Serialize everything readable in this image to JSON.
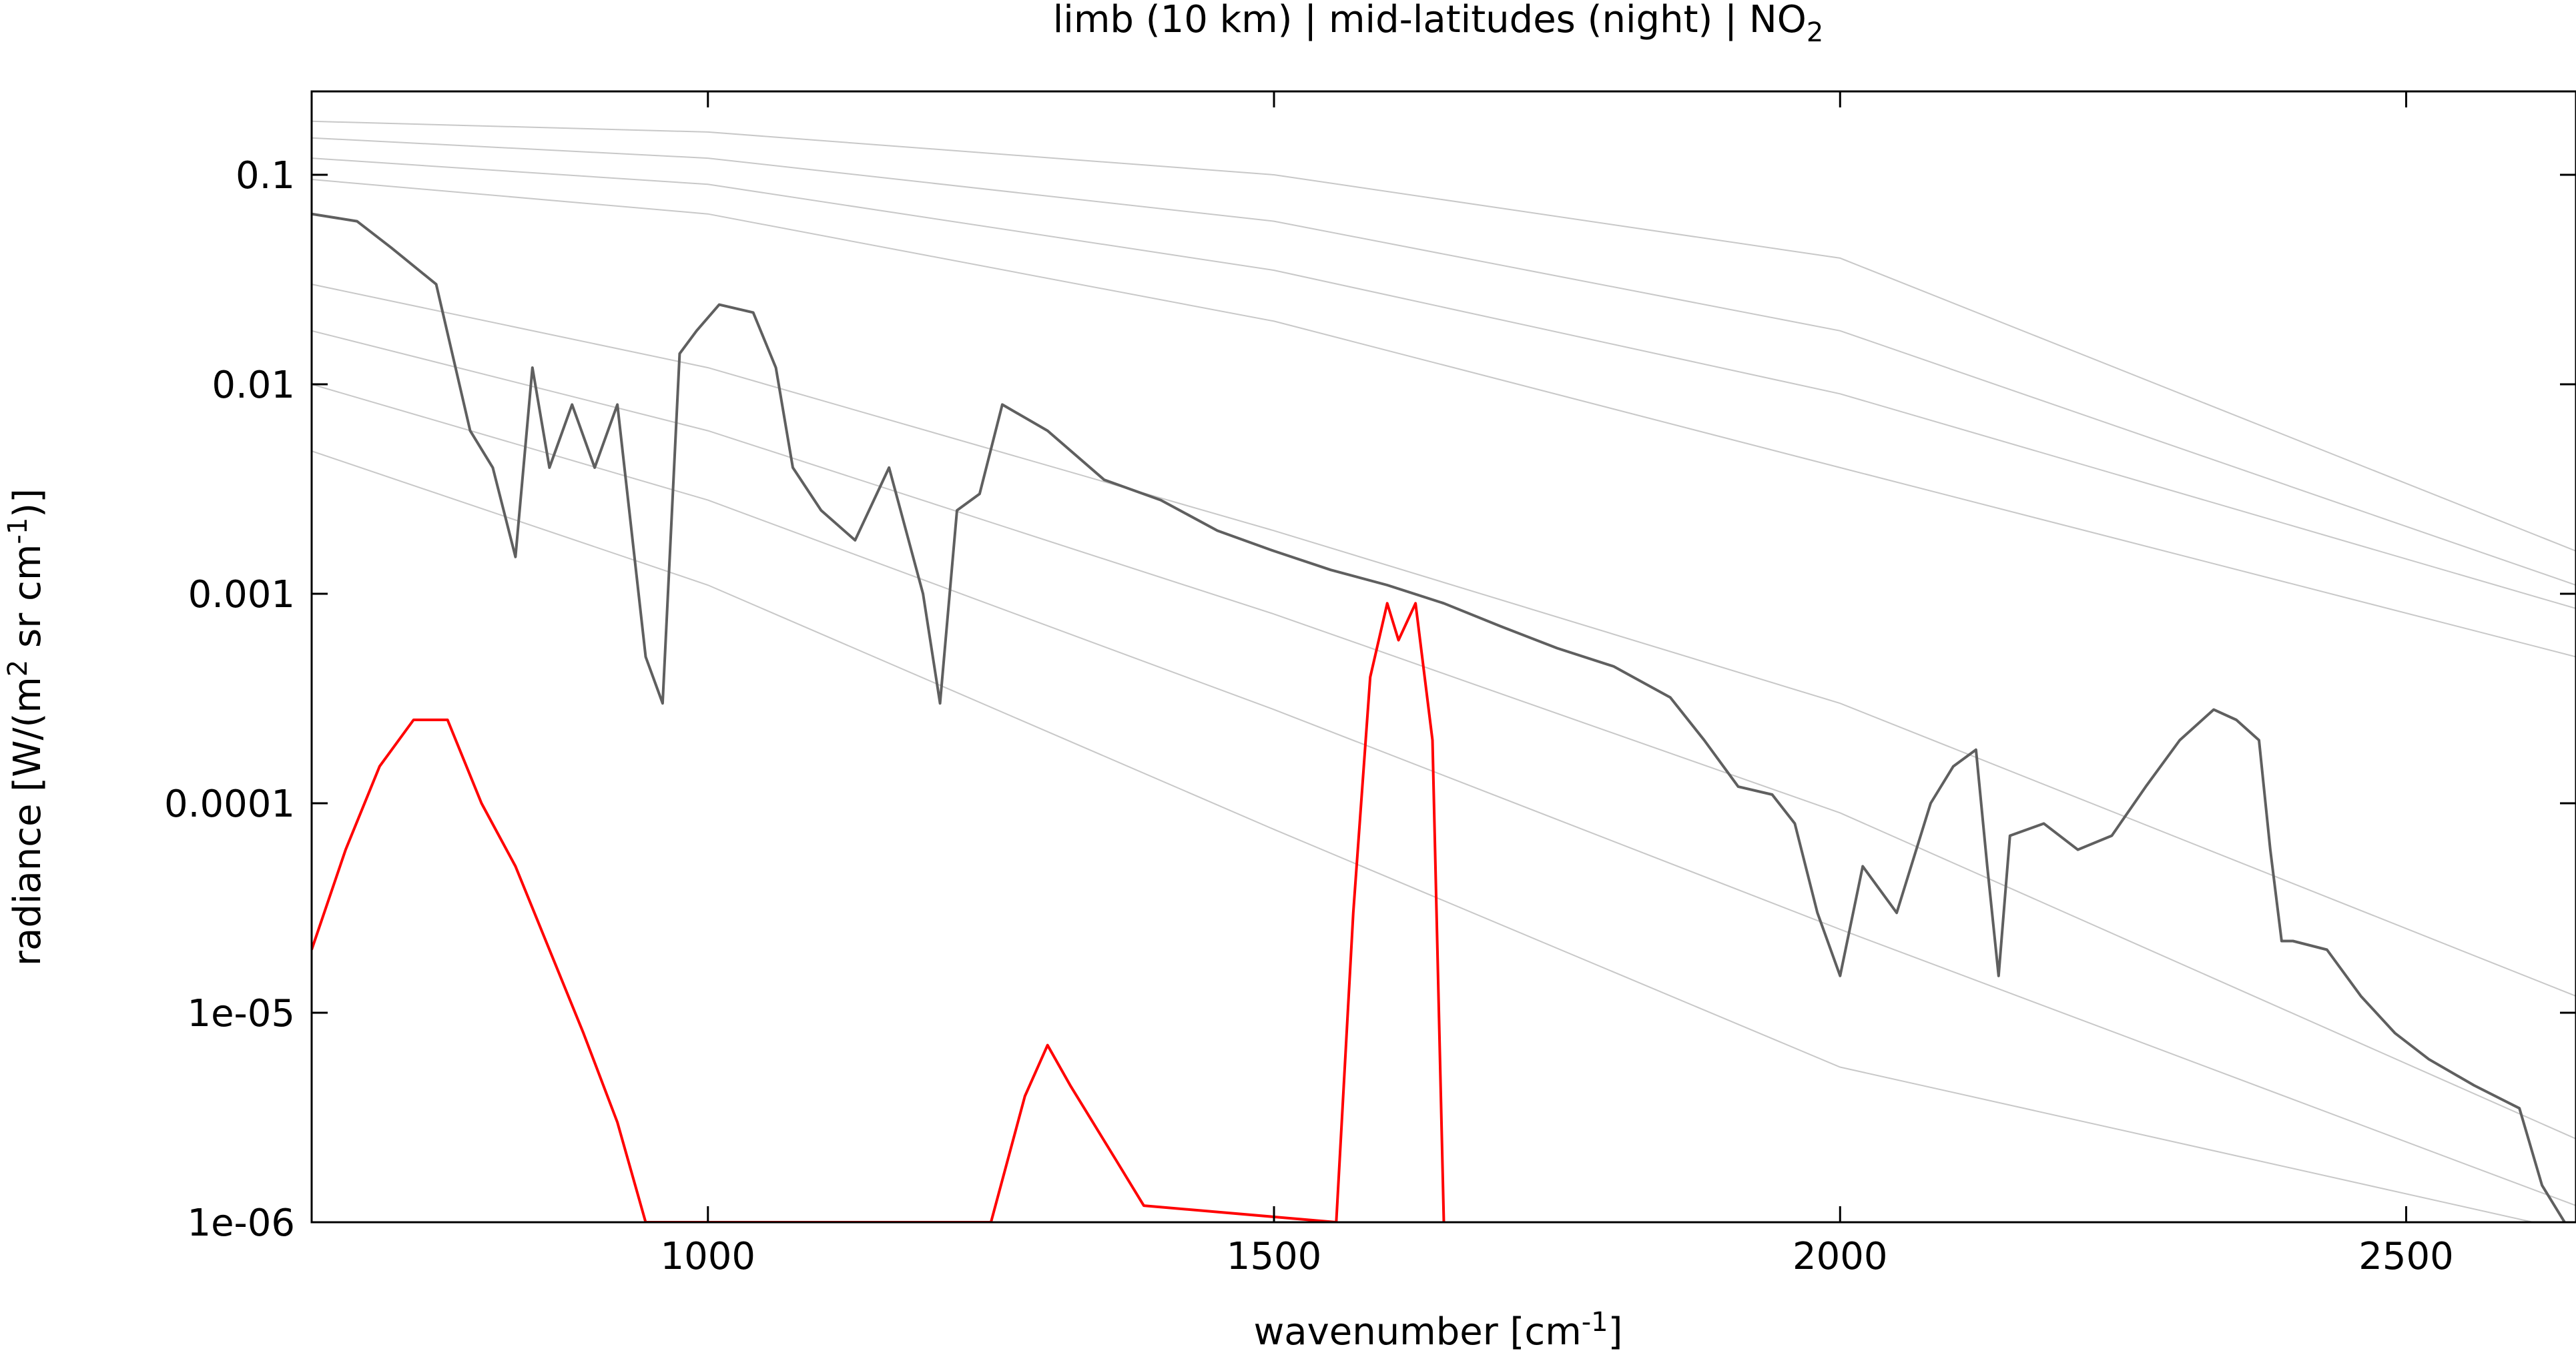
{
  "chart_data": {
    "type": "line",
    "title": "limb (10 km) | mid-latitudes (night) | NO2",
    "title_parts": {
      "main": "limb (10 km) | mid-latitudes (night) | NO",
      "subscript": "2"
    },
    "xlabel": "wavenumber [cm-1]",
    "xlabel_parts": {
      "main": "wavenumber [cm",
      "superscript": "-1",
      "end": "]"
    },
    "ylabel": "radiance [W/(m2 sr cm-1)]",
    "ylabel_parts": {
      "a": "radiance [W/(m",
      "sup1": "2",
      "b": " sr cm",
      "sup2": "-1",
      "c": ")]"
    },
    "xlim": [
      650,
      2650
    ],
    "ylim": [
      1e-06,
      0.25
    ],
    "yscale": "log",
    "grid": false,
    "xticks": [
      {
        "value": 1000,
        "label": "1000"
      },
      {
        "value": 1500,
        "label": "1500"
      },
      {
        "value": 2000,
        "label": "2000"
      },
      {
        "value": 2500,
        "label": "2500"
      }
    ],
    "yticks": [
      {
        "value": 0.1,
        "label": "0.1"
      },
      {
        "value": 0.01,
        "label": "0.01"
      },
      {
        "value": 0.001,
        "label": "0.001"
      },
      {
        "value": 0.0001,
        "label": "0.0001"
      },
      {
        "value": 1e-05,
        "label": "1e-05"
      },
      {
        "value": 1e-06,
        "label": "1e-06"
      }
    ],
    "reference_curves": {
      "description_units": "radiance at wavenumber",
      "x": [
        650,
        1000,
        1500,
        2000,
        2650
      ],
      "curves": [
        [
          0.18,
          0.16,
          0.1,
          0.04,
          0.0016
        ],
        [
          0.15,
          0.12,
          0.06,
          0.018,
          0.0011
        ],
        [
          0.12,
          0.09,
          0.035,
          0.009,
          0.00085
        ],
        [
          0.095,
          0.065,
          0.02,
          0.004,
          0.0005
        ],
        [
          0.03,
          0.012,
          0.002,
          0.0003,
          1.2e-05
        ],
        [
          0.018,
          0.006,
          0.0008,
          9e-05,
          2.5e-06
        ],
        [
          0.01,
          0.0028,
          0.00028,
          2.5e-05,
          1.2e-06
        ],
        [
          0.0048,
          0.0011,
          7.5e-05,
          5.5e-06,
          9e-07
        ]
      ]
    },
    "series": [
      {
        "color": "#5f5f5f",
        "x": [
          650,
          690,
          720,
          760,
          790,
          810,
          830,
          845,
          860,
          880,
          900,
          920,
          945,
          960,
          975,
          990,
          1010,
          1040,
          1060,
          1075,
          1100,
          1130,
          1160,
          1190,
          1205,
          1220,
          1240,
          1260,
          1300,
          1350,
          1400,
          1450,
          1500,
          1550,
          1600,
          1650,
          1700,
          1750,
          1800,
          1850,
          1880,
          1910,
          1940,
          1960,
          1980,
          2000,
          2020,
          2050,
          2080,
          2100,
          2120,
          2130,
          2140,
          2150,
          2180,
          2210,
          2240,
          2270,
          2300,
          2330,
          2350,
          2370,
          2380,
          2390,
          2400,
          2430,
          2460,
          2490,
          2520,
          2560,
          2600,
          2620,
          2640
        ],
        "values": [
          0.065,
          0.06,
          0.045,
          0.03,
          0.006,
          0.004,
          0.0015,
          0.012,
          0.004,
          0.008,
          0.004,
          0.008,
          0.0005,
          0.0003,
          0.014,
          0.018,
          0.024,
          0.022,
          0.012,
          0.004,
          0.0025,
          0.0018,
          0.004,
          0.001,
          0.0003,
          0.0025,
          0.003,
          0.008,
          0.006,
          0.0035,
          0.0028,
          0.002,
          0.0016,
          0.0013,
          0.0011,
          0.0009,
          0.0007,
          0.00055,
          0.00045,
          0.00032,
          0.0002,
          0.00012,
          0.00011,
          8e-05,
          3e-05,
          1.5e-05,
          5e-05,
          3e-05,
          0.0001,
          0.00015,
          0.00018,
          5e-05,
          1.5e-05,
          7e-05,
          8e-05,
          6e-05,
          7e-05,
          0.00012,
          0.0002,
          0.00028,
          0.00025,
          0.0002,
          6e-05,
          2.2e-05,
          2.2e-05,
          2e-05,
          1.2e-05,
          8e-06,
          6e-06,
          4.5e-06,
          3.5e-06,
          1.5e-06,
          1e-06
        ]
      },
      {
        "color": "#ff0000",
        "x": [
          650,
          680,
          710,
          740,
          770,
          800,
          830,
          860,
          890,
          920,
          945,
          1250,
          1280,
          1300,
          1320,
          1340,
          1360,
          1385,
          1555,
          1570,
          1585,
          1600,
          1610,
          1625,
          1640,
          1650
        ],
        "values": [
          2e-05,
          6e-05,
          0.00015,
          0.00025,
          0.00025,
          0.0001,
          5e-05,
          2e-05,
          8e-06,
          3e-06,
          1e-06,
          1e-06,
          4e-06,
          7e-06,
          4.5e-06,
          3e-06,
          2e-06,
          1.2e-06,
          1e-06,
          3e-05,
          0.0004,
          0.0009,
          0.0006,
          0.0009,
          0.0002,
          1e-06
        ]
      }
    ]
  }
}
